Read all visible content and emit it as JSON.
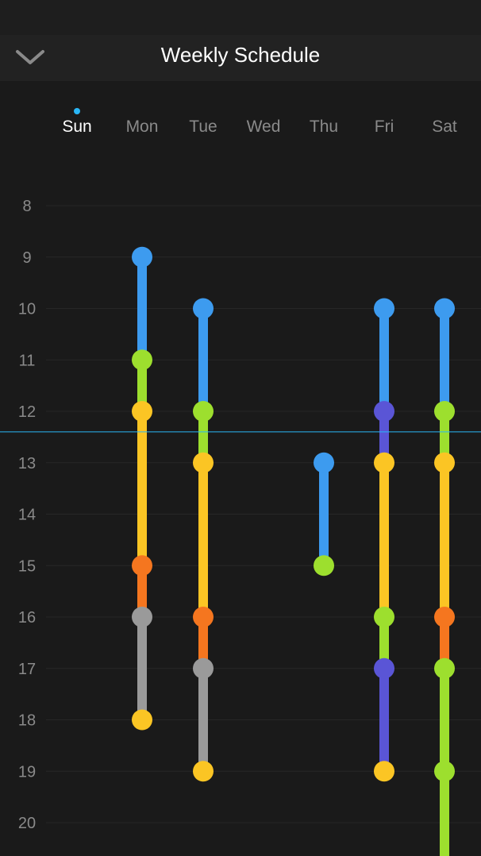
{
  "header": {
    "title": "Weekly Schedule",
    "back_icon": "chevron-down-icon"
  },
  "days": [
    {
      "label": "Sun",
      "active": true
    },
    {
      "label": "Mon",
      "active": false
    },
    {
      "label": "Tue",
      "active": false
    },
    {
      "label": "Wed",
      "active": false
    },
    {
      "label": "Thu",
      "active": false
    },
    {
      "label": "Fri",
      "active": false
    },
    {
      "label": "Sat",
      "active": false
    }
  ],
  "hours": [
    "8",
    "9",
    "10",
    "11",
    "12",
    "13",
    "14",
    "15",
    "16",
    "17",
    "18",
    "19",
    "20"
  ],
  "colors": {
    "blue": "#3d9bef",
    "green": "#9ddf2e",
    "yellow": "#fbc524",
    "orange": "#f5761f",
    "gray": "#9a9a9a",
    "purple": "#5a55d6",
    "now_line": "#29b6f6"
  },
  "now_hour": 12.4,
  "chart_data": {
    "type": "schedule",
    "days": [
      "Sun",
      "Mon",
      "Tue",
      "Wed",
      "Thu",
      "Fri",
      "Sat"
    ],
    "y_range": [
      8,
      20
    ],
    "schedules": [
      {
        "day": "Mon",
        "points": [
          {
            "hour": 9,
            "color": "blue"
          },
          {
            "hour": 11,
            "color": "green"
          },
          {
            "hour": 12,
            "color": "yellow"
          },
          {
            "hour": 15,
            "color": "orange"
          },
          {
            "hour": 16,
            "color": "gray"
          },
          {
            "hour": 18,
            "color": "yellow"
          }
        ]
      },
      {
        "day": "Tue",
        "points": [
          {
            "hour": 10,
            "color": "blue"
          },
          {
            "hour": 12,
            "color": "green"
          },
          {
            "hour": 13,
            "color": "yellow"
          },
          {
            "hour": 16,
            "color": "orange"
          },
          {
            "hour": 17,
            "color": "gray"
          },
          {
            "hour": 19,
            "color": "yellow"
          }
        ]
      },
      {
        "day": "Thu",
        "points": [
          {
            "hour": 13,
            "color": "blue"
          },
          {
            "hour": 15,
            "color": "green"
          }
        ]
      },
      {
        "day": "Fri",
        "points": [
          {
            "hour": 10,
            "color": "blue"
          },
          {
            "hour": 12,
            "color": "purple"
          },
          {
            "hour": 13,
            "color": "yellow"
          },
          {
            "hour": 16,
            "color": "green"
          },
          {
            "hour": 17,
            "color": "purple"
          },
          {
            "hour": 19,
            "color": "yellow"
          }
        ]
      },
      {
        "day": "Sat",
        "extends_below": true,
        "points": [
          {
            "hour": 10,
            "color": "blue"
          },
          {
            "hour": 12,
            "color": "green"
          },
          {
            "hour": 13,
            "color": "yellow"
          },
          {
            "hour": 16,
            "color": "orange"
          },
          {
            "hour": 17,
            "color": "green"
          },
          {
            "hour": 19,
            "color": "green"
          }
        ]
      }
    ]
  }
}
